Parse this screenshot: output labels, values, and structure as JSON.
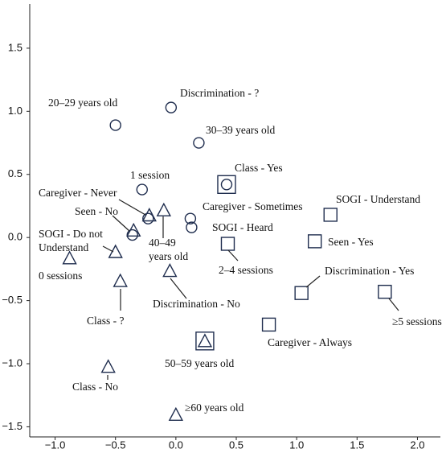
{
  "chart_data": {
    "type": "scatter",
    "xlim": [
      -1.21,
      2.19
    ],
    "ylim": [
      -1.58,
      1.85
    ],
    "xticks": [
      {
        "value": -1.0,
        "label": "−1.0"
      },
      {
        "value": -0.5,
        "label": "−0.5"
      },
      {
        "value": 0,
        "label": "0.0"
      },
      0.5,
      {
        "value": 1,
        "label": "1.0"
      },
      1.5,
      {
        "value": 2,
        "label": "2.0"
      }
    ],
    "yticks": [
      1.5,
      {
        "value": 1,
        "label": "1.0"
      },
      0.5,
      {
        "value": 0,
        "label": "0.0"
      },
      {
        "value": -0.5,
        "label": "−0.5"
      },
      {
        "value": -1,
        "label": "−1.0"
      },
      {
        "value": -1.5,
        "label": "−1.5"
      }
    ],
    "color": "#1f2d4e",
    "x": [
      -0.5,
      -0.04,
      0.19,
      -0.28,
      0.42,
      -0.23,
      0.12,
      0.13,
      -0.36,
      -0.1,
      -0.22,
      -0.35,
      -0.5,
      -0.88,
      -0.46,
      -0.05,
      -0.56,
      0.0,
      1.28,
      1.15,
      0.43,
      1.04,
      1.73,
      0.77,
      0.24
    ],
    "values": [
      0.89,
      1.03,
      0.75,
      0.38,
      0.42,
      0.15,
      0.15,
      0.08,
      0.02,
      0.21,
      0.17,
      0.05,
      -0.12,
      -0.17,
      -0.35,
      -0.27,
      -1.03,
      -1.41,
      0.18,
      -0.03,
      -0.05,
      -0.44,
      -0.43,
      -0.69,
      -0.82
    ],
    "markers": [
      "circle",
      "circle",
      "circle",
      "circle",
      "circle-square",
      "circle",
      "circle",
      "circle",
      "circle",
      "triangle",
      "triangle",
      "triangle",
      "triangle",
      "triangle",
      "triangle",
      "triangle",
      "triangle",
      "triangle",
      "square",
      "square",
      "square",
      "square",
      "square",
      "square",
      "triangle-square"
    ],
    "point_labels": [
      "20–29 years old",
      "Discrimination - ?",
      "30–39 years old",
      "1 session",
      "Class - Yes",
      "Caregiver - Never",
      "Caregiver - Sometimes",
      "SOGI - Heard",
      "Seen - No",
      [
        "40–49",
        "years old"
      ],
      null,
      null,
      [
        "SOGI - Do not",
        "Understand"
      ],
      "0 sessions",
      "Class - ?",
      "Discrimination - No",
      "Class - No",
      "≥60 years old",
      "SOGI - Understand",
      "Seen - Yes",
      "2–4 sessions",
      "Discrimination - Yes",
      "≥5 sessions",
      "Caregiver - Always",
      "50–59 years old"
    ]
  }
}
